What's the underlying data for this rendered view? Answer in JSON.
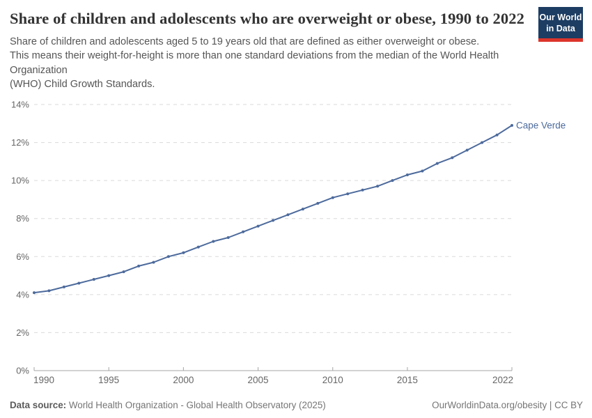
{
  "header": {
    "title": "Share of children and adolescents who are overweight or obese, 1990 to 2022",
    "subtitle_lines": [
      "Share of children and adolescents aged 5 to 19 years old that are defined as either overweight or obese.",
      "This means their weight-for-height is more than one standard deviations from the median of the World Health Organization",
      "(WHO) Child Growth Standards."
    ],
    "logo": {
      "line1": "Our World",
      "line2": "in Data",
      "bg_color": "#1d3d63",
      "accent_color": "#dc352c"
    }
  },
  "chart_data": {
    "type": "line",
    "title": "Share of children and adolescents who are overweight or obese, 1990 to 2022",
    "entity": "Cape Verde",
    "x": [
      1990,
      1991,
      1992,
      1993,
      1994,
      1995,
      1996,
      1997,
      1998,
      1999,
      2000,
      2001,
      2002,
      2003,
      2004,
      2005,
      2006,
      2007,
      2008,
      2009,
      2010,
      2011,
      2012,
      2013,
      2014,
      2015,
      2016,
      2017,
      2018,
      2019,
      2020,
      2021,
      2022
    ],
    "values": [
      4.1,
      4.2,
      4.4,
      4.6,
      4.8,
      5.0,
      5.2,
      5.5,
      5.7,
      6.0,
      6.2,
      6.5,
      6.8,
      7.0,
      7.3,
      7.6,
      7.9,
      8.2,
      8.5,
      8.8,
      9.1,
      9.3,
      9.5,
      9.7,
      10.0,
      10.3,
      10.5,
      10.9,
      11.2,
      11.6,
      12.0,
      12.4,
      12.9
    ],
    "xlabel": "",
    "ylabel": "",
    "y_unit": "%",
    "xlim": [
      1990,
      2022
    ],
    "ylim": [
      0,
      14
    ],
    "yticks": [
      0,
      2,
      4,
      6,
      8,
      10,
      12,
      14
    ],
    "xticks": [
      1990,
      1995,
      2000,
      2005,
      2010,
      2015,
      2022
    ],
    "grid": "dashed-horizontal",
    "legend": "end-of-line-label",
    "colors": {
      "line": "#4c6a9c",
      "entity_label": "#4c6a9c",
      "grid": "#dadada",
      "axis": "#a5a5a5",
      "tick_labels": "#666666"
    }
  },
  "footer": {
    "datasource_label": "Data source:",
    "datasource_text": " World Health Organization - Global Health Observatory (2025)",
    "credit": "OurWorldinData.org/obesity | CC BY"
  }
}
